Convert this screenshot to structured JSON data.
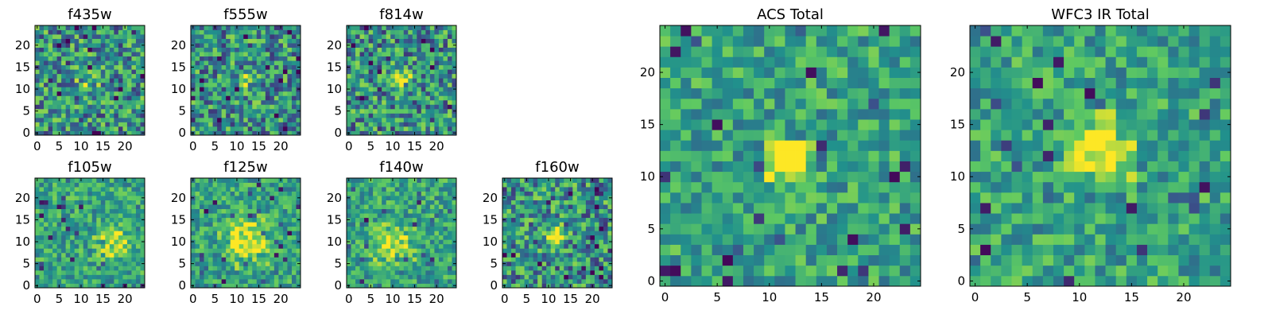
{
  "figure": {
    "description_kind": "grid of pixel-intensity heatmaps (postage stamps)",
    "colormap": "viridis",
    "colormap_stops": [
      "#440154",
      "#3b528b",
      "#21918c",
      "#5ec962",
      "#fde725"
    ]
  },
  "chart_data": [
    {
      "type": "heatmap",
      "title": "f435w",
      "grid_size": 25,
      "xlim": [
        0,
        25
      ],
      "ylim": [
        0,
        25
      ],
      "xticks": [
        0,
        5,
        10,
        15,
        20
      ],
      "yticks": [
        0,
        5,
        10,
        15,
        20
      ],
      "noise_level": "high",
      "source": {
        "x": 12,
        "y": 12,
        "radius": 1.5,
        "peak": 0.25
      }
    },
    {
      "type": "heatmap",
      "title": "f555w",
      "grid_size": 25,
      "xlim": [
        0,
        25
      ],
      "ylim": [
        0,
        25
      ],
      "xticks": [
        0,
        5,
        10,
        15,
        20
      ],
      "yticks": [
        0,
        5,
        10,
        15,
        20
      ],
      "noise_level": "high",
      "source": {
        "x": 12.5,
        "y": 12.5,
        "radius": 1.2,
        "peak": 0.4
      }
    },
    {
      "type": "heatmap",
      "title": "f814w",
      "grid_size": 25,
      "xlim": [
        0,
        25
      ],
      "ylim": [
        0,
        25
      ],
      "xticks": [
        0,
        5,
        10,
        15,
        20
      ],
      "yticks": [
        0,
        5,
        10,
        15,
        20
      ],
      "noise_level": "high",
      "source": {
        "x": 12.5,
        "y": 12.5,
        "radius": 1.3,
        "peak": 0.4
      }
    },
    {
      "type": "heatmap",
      "title": "f105w",
      "grid_size": 25,
      "xlim": [
        0,
        25
      ],
      "ylim": [
        0,
        25
      ],
      "xticks": [
        0,
        5,
        10,
        15,
        20
      ],
      "yticks": [
        0,
        5,
        10,
        15,
        20
      ],
      "noise_level": "medium",
      "source": {
        "x": 18,
        "y": 10,
        "radius": 3,
        "peak": 0.25
      }
    },
    {
      "type": "heatmap",
      "title": "f125w",
      "grid_size": 25,
      "xlim": [
        0,
        25
      ],
      "ylim": [
        0,
        25
      ],
      "xticks": [
        0,
        5,
        10,
        15,
        20
      ],
      "yticks": [
        0,
        5,
        10,
        15,
        20
      ],
      "noise_level": "medium",
      "source": {
        "x": 13,
        "y": 11,
        "radius": 4,
        "peak": 0.3
      }
    },
    {
      "type": "heatmap",
      "title": "f140w",
      "grid_size": 25,
      "xlim": [
        0,
        25
      ],
      "ylim": [
        0,
        25
      ],
      "xticks": [
        0,
        5,
        10,
        15,
        20
      ],
      "yticks": [
        0,
        5,
        10,
        15,
        20
      ],
      "noise_level": "medium",
      "source": {
        "x": 11,
        "y": 10,
        "radius": 3.5,
        "peak": 0.3
      }
    },
    {
      "type": "heatmap",
      "title": "f160w",
      "grid_size": 25,
      "xlim": [
        0,
        25
      ],
      "ylim": [
        0,
        25
      ],
      "xticks": [
        0,
        5,
        10,
        15,
        20
      ],
      "yticks": [
        0,
        5,
        10,
        15,
        20
      ],
      "noise_level": "high",
      "source": {
        "x": 12,
        "y": 12,
        "radius": 1.8,
        "peak": 0.35
      }
    },
    {
      "type": "heatmap",
      "title": "ACS Total",
      "grid_size": 25,
      "xlim": [
        0,
        25
      ],
      "ylim": [
        0,
        25
      ],
      "xticks": [
        0,
        5,
        10,
        15,
        20
      ],
      "yticks": [
        0,
        5,
        10,
        15,
        20
      ],
      "noise_level": "medium",
      "source": {
        "x": 12.5,
        "y": 12.5,
        "radius": 1.6,
        "peak": 0.55
      }
    },
    {
      "type": "heatmap",
      "title": "WFC3 IR Total",
      "grid_size": 25,
      "xlim": [
        0,
        25
      ],
      "ylim": [
        0,
        25
      ],
      "xticks": [
        0,
        5,
        10,
        15,
        20
      ],
      "yticks": [
        0,
        5,
        10,
        15,
        20
      ],
      "noise_level": "medium",
      "source": {
        "x": 12.5,
        "y": 13,
        "radius": 2.2,
        "peak": 0.45
      }
    }
  ]
}
